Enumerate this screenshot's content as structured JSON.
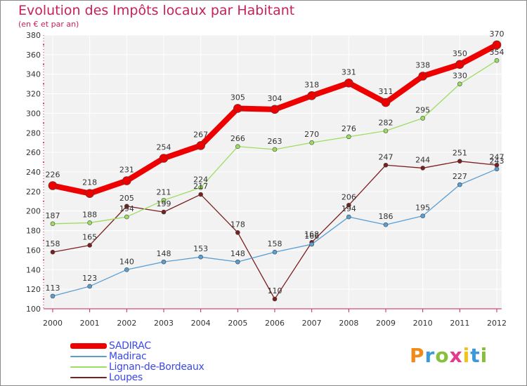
{
  "title": "Evolution des Impôts locaux par Habitant",
  "subtitle": "(en € et par an)",
  "logo": {
    "text": "Proxiti",
    "colors": [
      "#f28a1a",
      "#3a9ad9",
      "#86c03a",
      "#e23a8c",
      "#f2c21a",
      "#3a9ad9",
      "#86c03a"
    ]
  },
  "chart_data": {
    "type": "line",
    "title": "Evolution des Impôts locaux par Habitant",
    "subtitle": "(en € et par an)",
    "xlabel": "",
    "ylabel": "",
    "x": [
      "2000",
      "2001",
      "2002",
      "2003",
      "2004",
      "2005",
      "2006",
      "2007",
      "2008",
      "2009",
      "2010",
      "2011",
      "2012"
    ],
    "ylim": [
      100,
      380
    ],
    "yticks": [
      100,
      120,
      140,
      160,
      180,
      200,
      220,
      240,
      260,
      280,
      300,
      320,
      340,
      360,
      380
    ],
    "grid": true,
    "series": [
      {
        "name": "SADIRAC",
        "color": "#ee0000",
        "values": [
          226,
          218,
          231,
          254,
          267,
          305,
          304,
          318,
          331,
          311,
          338,
          350,
          370
        ]
      },
      {
        "name": "Madirac",
        "color": "#5a9fd4",
        "values": [
          113,
          123,
          140,
          148,
          153,
          148,
          158,
          166,
          194,
          186,
          195,
          227,
          243
        ]
      },
      {
        "name": "Lignan-de-Bordeaux",
        "color": "#9ddd60",
        "values": [
          187,
          188,
          194,
          211,
          224,
          266,
          263,
          270,
          276,
          282,
          295,
          330,
          354
        ]
      },
      {
        "name": "Loupes",
        "color": "#7a1f1f",
        "values": [
          158,
          165,
          205,
          199,
          217,
          178,
          110,
          168,
          206,
          247,
          244,
          251,
          247
        ]
      }
    ]
  }
}
